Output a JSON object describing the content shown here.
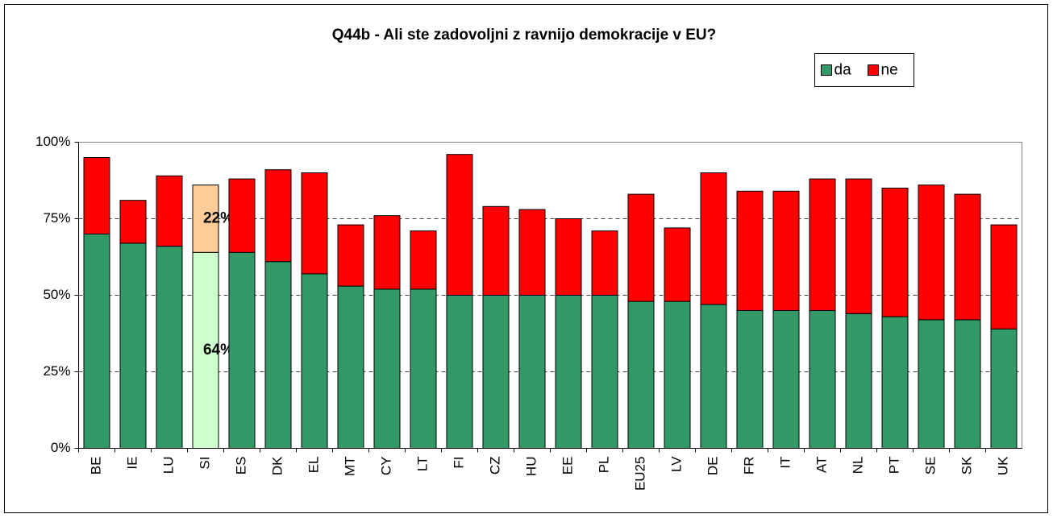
{
  "chart_data": {
    "type": "stacked_bar",
    "title": "Q44b - Ali ste zadovoljni z ravnijo demokracije v EU?",
    "categories": [
      "BE",
      "IE",
      "LU",
      "SI",
      "ES",
      "DK",
      "EL",
      "MT",
      "CY",
      "LT",
      "FI",
      "CZ",
      "HU",
      "EE",
      "PL",
      "EU25",
      "LV",
      "DE",
      "FR",
      "IT",
      "AT",
      "NL",
      "PT",
      "SE",
      "SK",
      "UK"
    ],
    "series": [
      {
        "name": "da",
        "color": "#339966",
        "colors": [
          "#339966",
          "#339966",
          "#339966",
          "#ccffcc",
          "#339966",
          "#339966",
          "#339966",
          "#339966",
          "#339966",
          "#339966",
          "#339966",
          "#339966",
          "#339966",
          "#339966",
          "#339966",
          "#339966",
          "#339966",
          "#339966",
          "#339966",
          "#339966",
          "#339966",
          "#339966",
          "#339966",
          "#339966",
          "#339966",
          "#339966"
        ],
        "values": [
          70,
          67,
          66,
          64,
          64,
          61,
          57,
          53,
          52,
          52,
          50,
          50,
          50,
          50,
          50,
          48,
          48,
          47,
          45,
          45,
          45,
          44,
          43,
          42,
          42,
          39
        ],
        "value_labels": [
          null,
          null,
          null,
          "64%",
          null,
          null,
          null,
          null,
          null,
          null,
          null,
          null,
          null,
          null,
          null,
          null,
          null,
          null,
          null,
          null,
          null,
          null,
          null,
          null,
          null,
          null
        ]
      },
      {
        "name": "ne",
        "color": "#ff0000",
        "colors": [
          "#ff0000",
          "#ff0000",
          "#ff0000",
          "#ffcc99",
          "#ff0000",
          "#ff0000",
          "#ff0000",
          "#ff0000",
          "#ff0000",
          "#ff0000",
          "#ff0000",
          "#ff0000",
          "#ff0000",
          "#ff0000",
          "#ff0000",
          "#ff0000",
          "#ff0000",
          "#ff0000",
          "#ff0000",
          "#ff0000",
          "#ff0000",
          "#ff0000",
          "#ff0000",
          "#ff0000",
          "#ff0000",
          "#ff0000"
        ],
        "values": [
          25,
          14,
          23,
          22,
          24,
          30,
          33,
          20,
          24,
          19,
          46,
          29,
          28,
          25,
          21,
          35,
          24,
          43,
          39,
          39,
          43,
          44,
          42,
          44,
          41,
          34
        ],
        "value_labels": [
          null,
          null,
          null,
          "22%",
          null,
          null,
          null,
          null,
          null,
          null,
          null,
          null,
          null,
          null,
          null,
          null,
          null,
          null,
          null,
          null,
          null,
          null,
          null,
          null,
          null,
          null
        ]
      }
    ],
    "ylim": [
      0,
      100
    ],
    "yticks": [
      {
        "value": 0,
        "label": "0%"
      },
      {
        "value": 25,
        "label": "25%"
      },
      {
        "value": 50,
        "label": "50%"
      },
      {
        "value": 75,
        "label": "75%"
      },
      {
        "value": 100,
        "label": "100%"
      }
    ],
    "grid": true,
    "legend": "top-right"
  }
}
